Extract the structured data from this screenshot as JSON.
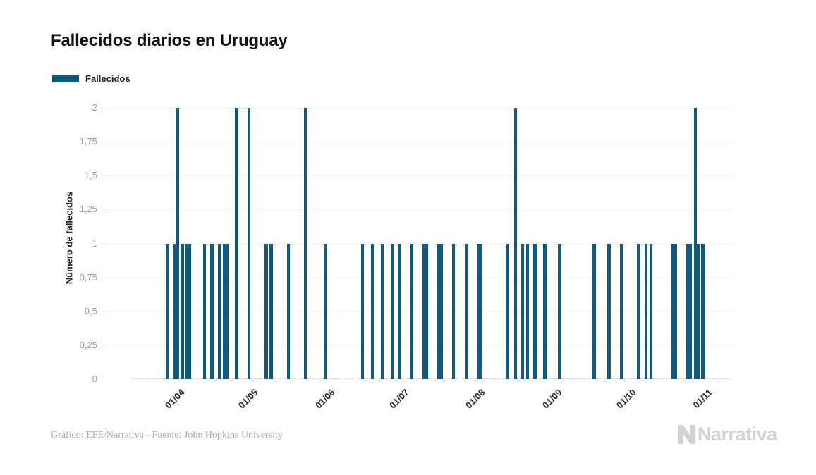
{
  "title": "Fallecidos diarios en Uruguay",
  "legend": {
    "items": [
      {
        "label": "Fallecidos",
        "color": "#0f5a7e"
      }
    ]
  },
  "y_axis": {
    "title": "Número de fallecidos",
    "ticks": [
      "0",
      "0,25",
      "0,5",
      "0,75",
      "1",
      "1,25",
      "1,5",
      "1,75",
      "2"
    ]
  },
  "x_axis": {
    "labels": [
      "01/04",
      "01/05",
      "01/06",
      "01/07",
      "01/08",
      "01/09",
      "01/10",
      "01/11"
    ]
  },
  "chart_data": {
    "type": "bar",
    "title": "Fallecidos diarios en Uruguay",
    "xlabel": "",
    "ylabel": "Número de fallecidos",
    "ylim": [
      0,
      2
    ],
    "grid": "horizontal",
    "legend_position": "top-left",
    "date_format": "dd/mm",
    "year": 2020,
    "zero_value_range": {
      "start": "17/03",
      "end": "15/11"
    },
    "series": [
      {
        "name": "Fallecidos",
        "color": "#0f5a7e",
        "points": [
          [
            "01/04",
            1
          ],
          [
            "04/04",
            1
          ],
          [
            "05/04",
            2
          ],
          [
            "07/04",
            1
          ],
          [
            "09/04",
            1
          ],
          [
            "10/04",
            1
          ],
          [
            "16/04",
            1
          ],
          [
            "19/04",
            1
          ],
          [
            "22/04",
            1
          ],
          [
            "24/04",
            1
          ],
          [
            "25/04",
            1
          ],
          [
            "29/04",
            2
          ],
          [
            "04/05",
            2
          ],
          [
            "11/05",
            1
          ],
          [
            "13/05",
            1
          ],
          [
            "20/05",
            1
          ],
          [
            "27/05",
            2
          ],
          [
            "04/06",
            1
          ],
          [
            "19/06",
            1
          ],
          [
            "23/06",
            1
          ],
          [
            "27/06",
            1
          ],
          [
            "01/07",
            1
          ],
          [
            "04/07",
            1
          ],
          [
            "09/07",
            1
          ],
          [
            "14/07",
            1
          ],
          [
            "15/07",
            1
          ],
          [
            "20/07",
            1
          ],
          [
            "21/07",
            1
          ],
          [
            "26/07",
            1
          ],
          [
            "31/07",
            1
          ],
          [
            "05/08",
            1
          ],
          [
            "06/08",
            1
          ],
          [
            "17/08",
            1
          ],
          [
            "20/08",
            2
          ],
          [
            "23/08",
            1
          ],
          [
            "25/08",
            1
          ],
          [
            "28/08",
            1
          ],
          [
            "01/09",
            1
          ],
          [
            "07/09",
            1
          ],
          [
            "21/09",
            1
          ],
          [
            "27/09",
            1
          ],
          [
            "02/10",
            1
          ],
          [
            "09/10",
            1
          ],
          [
            "12/10",
            1
          ],
          [
            "14/10",
            1
          ],
          [
            "23/10",
            1
          ],
          [
            "24/10",
            1
          ],
          [
            "29/10",
            1
          ],
          [
            "30/10",
            1
          ],
          [
            "01/11",
            2
          ],
          [
            "02/11",
            1
          ],
          [
            "04/11",
            1
          ]
        ]
      }
    ]
  },
  "footer": {
    "credit": "Gráfico: EFE/Narrativa - Fuente: John Hopkins University",
    "logo_text": "Narrativa"
  },
  "colors": {
    "bar": "#0f5a7e",
    "gridline": "#f1f1f1",
    "axis_line": "#e2e2e2",
    "zero_dash": "#d9d9d9",
    "y_tick_label": "#9b9b9b",
    "x_tick_label": "#2a2a2a",
    "title": "#111111",
    "footer": "#ababab",
    "logo": "#d2d2d2"
  }
}
